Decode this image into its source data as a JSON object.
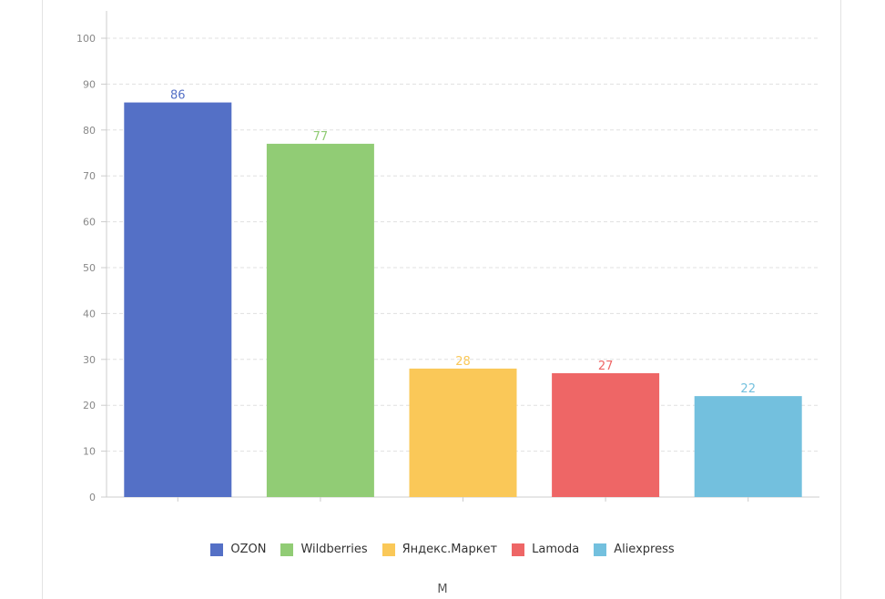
{
  "chart_data": {
    "type": "bar",
    "categories": [
      "OZON",
      "Wildberries",
      "Яндекс.Маркет",
      "Lamoda",
      "Aliexpress"
    ],
    "values": [
      86,
      77,
      28,
      27,
      22
    ],
    "colors": [
      "#5470c6",
      "#91cc75",
      "#fac858",
      "#ee6666",
      "#73c0de"
    ],
    "ylim": [
      0,
      100
    ],
    "yticks": [
      0,
      10,
      20,
      30,
      40,
      50,
      60,
      70,
      80,
      90,
      100
    ],
    "grid": true,
    "legend_position": "bottom",
    "caption": "М"
  }
}
